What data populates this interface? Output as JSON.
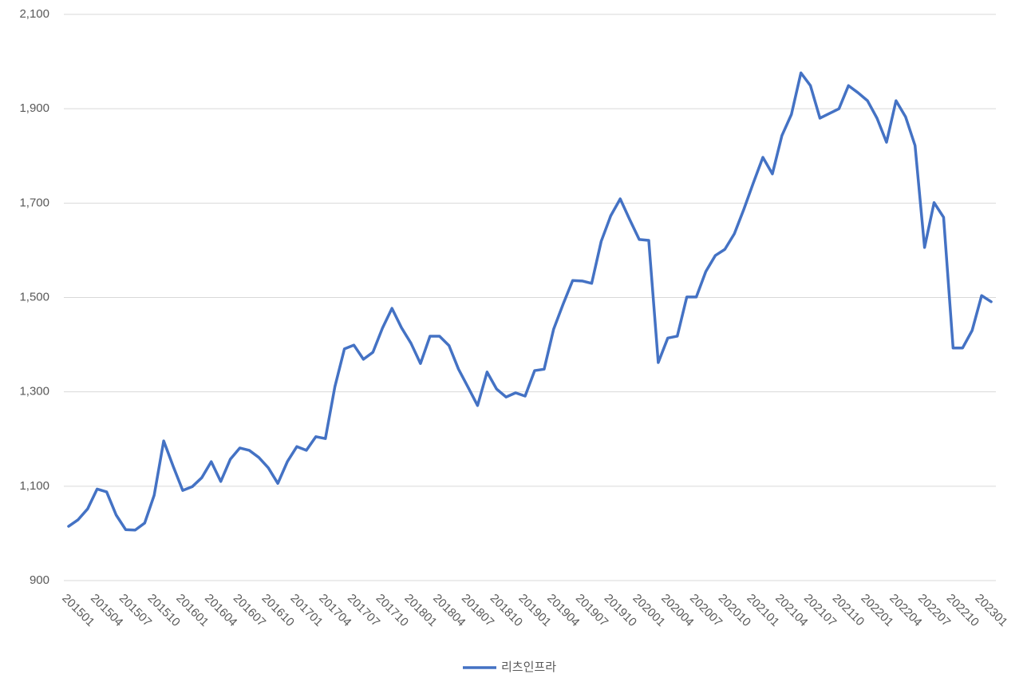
{
  "chart_data": {
    "type": "line",
    "categories": [
      "201501",
      null,
      null,
      "201504",
      null,
      null,
      "201507",
      null,
      null,
      "201510",
      null,
      null,
      "201601",
      null,
      null,
      "201604",
      null,
      null,
      "201607",
      null,
      null,
      "201610",
      null,
      null,
      "201701",
      null,
      null,
      "201704",
      null,
      null,
      "201707",
      null,
      null,
      "201710",
      null,
      null,
      "201801",
      null,
      null,
      "201804",
      null,
      null,
      "201807",
      null,
      null,
      "201810",
      null,
      null,
      "201901",
      null,
      null,
      "201904",
      null,
      null,
      "201907",
      null,
      null,
      "201910",
      null,
      null,
      "202001",
      null,
      null,
      "202004",
      null,
      null,
      "202007",
      null,
      null,
      "202010",
      null,
      null,
      "202101",
      null,
      null,
      "202104",
      null,
      null,
      "202107",
      null,
      null,
      "202110",
      null,
      null,
      "202201",
      null,
      null,
      "202204",
      null,
      null,
      "202207",
      null,
      null,
      "202210",
      null,
      null,
      "202301",
      null
    ],
    "series": [
      {
        "name": "리츠인프라",
        "color": "#4472c4",
        "values": [
          1015,
          1029,
          1052,
          1094,
          1088,
          1039,
          1008,
          1007,
          1022,
          1081,
          1196,
          1142,
          1091,
          1099,
          1118,
          1152,
          1110,
          1157,
          1181,
          1176,
          1161,
          1139,
          1106,
          1152,
          1184,
          1176,
          1205,
          1201,
          1311,
          1391,
          1399,
          1369,
          1384,
          1435,
          1477,
          1436,
          1403,
          1360,
          1418,
          1418,
          1398,
          1348,
          1310,
          1271,
          1342,
          1306,
          1289,
          1298,
          1291,
          1345,
          1348,
          1433,
          1486,
          1536,
          1535,
          1530,
          1619,
          1673,
          1709,
          1665,
          1623,
          1621,
          1362,
          1414,
          1418,
          1501,
          1501,
          1555,
          1589,
          1602,
          1635,
          1687,
          1743,
          1797,
          1762,
          1843,
          1888,
          1976,
          1949,
          1880,
          1890,
          1900,
          1949,
          1934,
          1917,
          1880,
          1829,
          1917,
          1883,
          1822,
          1606,
          1701,
          1670,
          1393,
          1393,
          1430,
          1504,
          1491
        ]
      }
    ],
    "ylim": [
      900,
      2100
    ],
    "yticks": [
      900,
      {
        "value": 1100,
        "label": "1,100"
      },
      {
        "value": 1300,
        "label": "1,300"
      },
      {
        "value": 1500,
        "label": "1,500"
      },
      {
        "value": 1700,
        "label": "1,700"
      },
      {
        "value": 1900,
        "label": "1,900"
      },
      {
        "value": 2100,
        "label": "2,100"
      }
    ],
    "grid": true,
    "legend": "bottom"
  }
}
